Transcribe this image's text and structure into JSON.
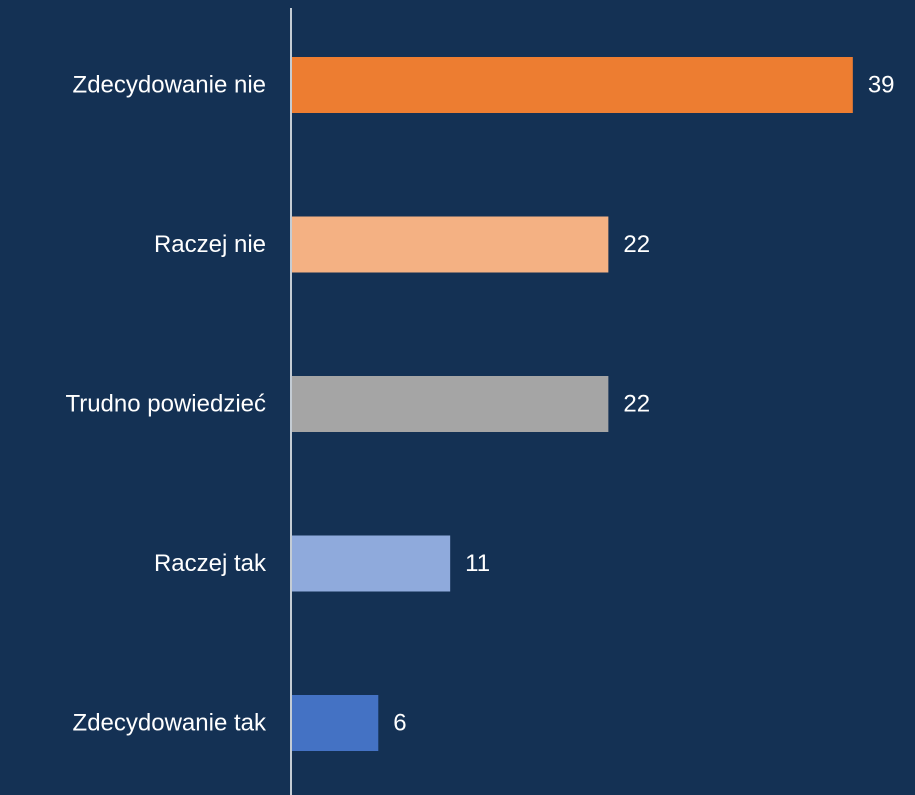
{
  "chart_data": {
    "type": "bar",
    "orientation": "horizontal",
    "categories": [
      "Zdecydowanie nie",
      "Raczej nie",
      "Trudno powiedzieć",
      "Raczej tak",
      "Zdecydowanie tak"
    ],
    "values": [
      39,
      22,
      22,
      11,
      6
    ],
    "colors": [
      "#ED7D31",
      "#F4B183",
      "#A5A5A5",
      "#8FAADC",
      "#4472C4"
    ],
    "background": "#143154",
    "axis_color": "#FFFFFF",
    "xlim": [
      0,
      42
    ],
    "grid": false,
    "legend": "none"
  }
}
